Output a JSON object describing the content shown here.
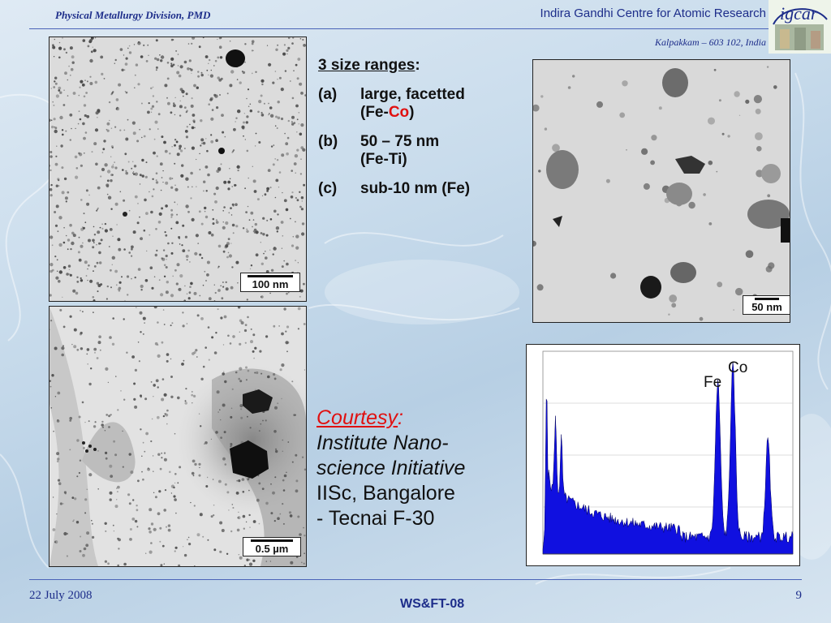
{
  "header": {
    "left": "Physical Metallurgy Division, PMD",
    "right": "Indira Gandhi Centre for Atomic Research",
    "sub": "Kalpakkam – 603 102, India",
    "logo_text": "igcar"
  },
  "images": {
    "tl_scale": "100 nm",
    "bl_scale": "0.5 µm",
    "tr_scale": "50 nm"
  },
  "list": {
    "heading": "3 size ranges",
    "heading_suffix": ":",
    "items": [
      {
        "label": "(a)",
        "line1": "large, facetted",
        "line2_pre": "(Fe-",
        "line2_red": "Co",
        "line2_post": ")"
      },
      {
        "label": "(b)",
        "line1": "50 – 75 nm",
        "line2": "(Fe-Ti)"
      },
      {
        "label": "(c)",
        "line1": "sub-10 nm (Fe)"
      }
    ]
  },
  "spectrum": {
    "peak_fe": "Fe",
    "peak_co": "Co"
  },
  "courtesy": {
    "title": "Courtesy",
    "colon": ":",
    "line1": "Institute  Nano-",
    "line2": "science Initiative",
    "line3": "IISc, Bangalore",
    "line4": "- Tecnai F-30"
  },
  "footer": {
    "date": "22 July 2008",
    "center": "WS&FT-08",
    "page": "9"
  },
  "colors": {
    "accent": "#1d2d8a",
    "highlight": "#e01010",
    "spectrum": "#1010e0"
  }
}
